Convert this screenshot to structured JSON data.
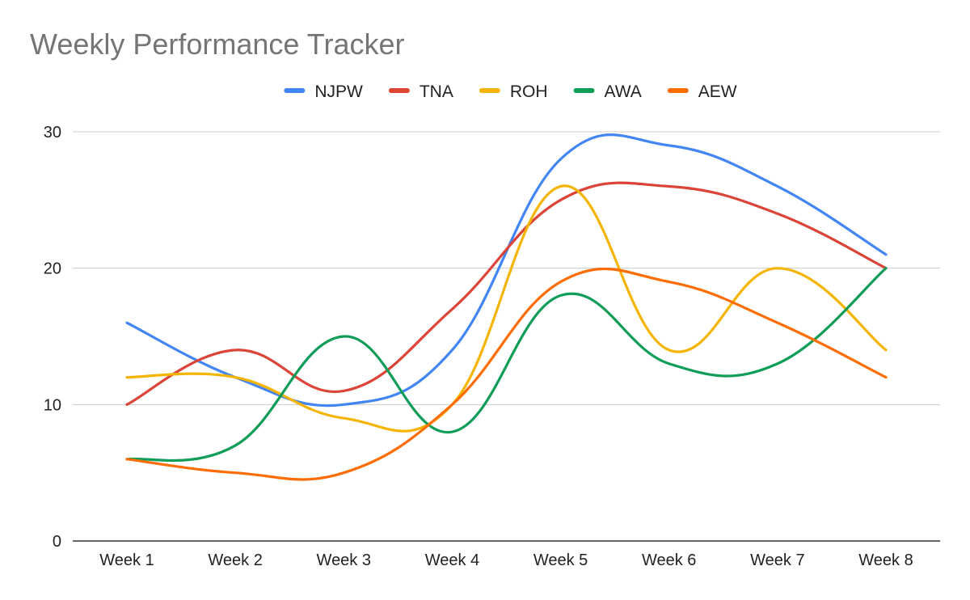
{
  "chart_data": {
    "type": "line",
    "title": "Weekly Performance Tracker",
    "xlabel": "",
    "ylabel": "",
    "categories": [
      "Week 1",
      "Week 2",
      "Week 3",
      "Week 4",
      "Week 5",
      "Week 6",
      "Week 7",
      "Week 8"
    ],
    "ylim": [
      0,
      30
    ],
    "yticks": [
      0,
      10,
      20,
      30
    ],
    "grid": true,
    "smooth": true,
    "legend_position": "top",
    "series": [
      {
        "name": "NJPW",
        "color": "#4285F4",
        "values": [
          16,
          12,
          10,
          14,
          28,
          29,
          26,
          21
        ]
      },
      {
        "name": "TNA",
        "color": "#DB4437",
        "values": [
          10,
          14,
          11,
          17,
          25,
          26,
          24,
          20
        ]
      },
      {
        "name": "ROH",
        "color": "#F4B400",
        "values": [
          12,
          12,
          9,
          10,
          26,
          14,
          20,
          14
        ]
      },
      {
        "name": "AWA",
        "color": "#0F9D58",
        "values": [
          6,
          7,
          15,
          8,
          18,
          13,
          13,
          20
        ]
      },
      {
        "name": "AEW",
        "color": "#FF6D01",
        "values": [
          6,
          5,
          5,
          10,
          19,
          19,
          16,
          12
        ]
      }
    ]
  }
}
